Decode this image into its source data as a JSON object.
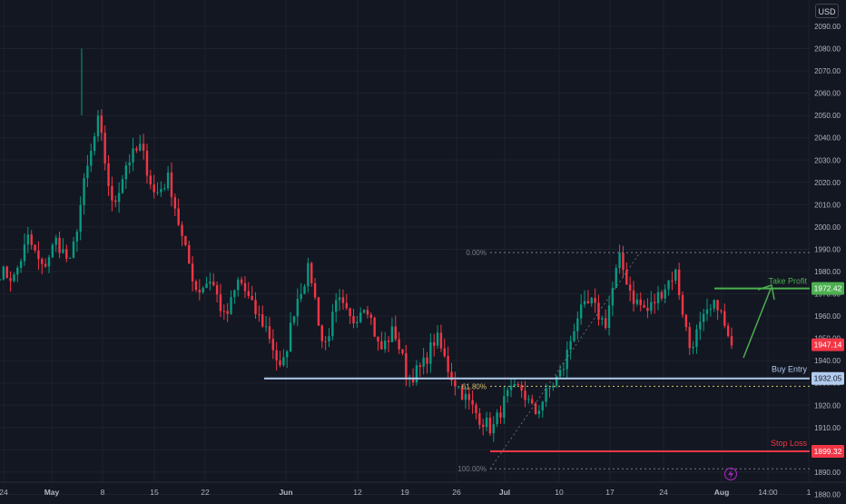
{
  "currency_label": "USD",
  "colors": {
    "background": "#131722",
    "grid": "#1e222d",
    "up": "#089981",
    "down": "#f23645",
    "axis_text": "#b2b5be",
    "support": "#b2ccee",
    "take_profit": "#4caf50",
    "stop_loss": "#f23645",
    "fib": "#787b86",
    "fib_mid": "#d7c36a",
    "price_label": "#f23645",
    "lightning": "#9c27b0"
  },
  "icons": {
    "event": "lightning-icon"
  },
  "chart_data": {
    "type": "candlestick",
    "title": "",
    "ylim": [
      1877,
      2098
    ],
    "grid": true,
    "y_ticks": [
      2090,
      2080,
      2070,
      2060,
      2050,
      2040,
      2030,
      2020,
      2010,
      2000,
      1990,
      1980,
      1970,
      1960,
      1950,
      1940,
      1930,
      1920,
      1910,
      1900,
      1890,
      1880
    ],
    "y_tick_labels": [
      "2090.00",
      "2080.00",
      "2070.00",
      "2060.00",
      "2050.00",
      "2040.00",
      "2030.00",
      "2020.00",
      "2010.00",
      "2000.00",
      "1990.00",
      "1980.00",
      "1970.00",
      "1960.00",
      "1950.00",
      "1940.00",
      "1930.00",
      "1920.00",
      "1910.00",
      "1900.00",
      "1890.00",
      "1880.00"
    ],
    "x_ticks": [
      "24",
      "May",
      "8",
      "15",
      "22",
      "Jun",
      "12",
      "19",
      "26",
      "Jul",
      "10",
      "17",
      "24",
      "Aug",
      "14:00",
      "1"
    ],
    "x_bold": [
      "May",
      "Jun",
      "Jul",
      "Aug"
    ],
    "price_path": [
      1980,
      1977,
      1995,
      1981,
      1994,
      1983,
      2020,
      2048,
      2008,
      2029,
      2036,
      2014,
      2022,
      1993,
      1971,
      1977,
      1958,
      1977,
      1963,
      1954,
      1934,
      1966,
      1982,
      1945,
      1967,
      1957,
      1967,
      1944,
      1954,
      1932,
      1937,
      1951,
      1934,
      1924,
      1915,
      1909,
      1924,
      1928,
      1916,
      1927,
      1936,
      1960,
      1966,
      1956,
      1986,
      1968,
      1962,
      1971,
      1980,
      1946,
      1958,
      1966,
      1944
    ],
    "levels": {
      "take_profit": {
        "label": "Take Profit",
        "value": 1972.42,
        "display": "1972.42"
      },
      "buy_entry": {
        "label": "Buy Entry",
        "value": 1932.05,
        "display": "1932.05"
      },
      "stop_loss": {
        "label": "Stop Loss",
        "value": 1899.32,
        "display": "1899.32"
      },
      "last_price": {
        "value": 1947.14,
        "display": "1947.14"
      }
    },
    "fib": [
      {
        "label": "0.00%",
        "value": 1988.5
      },
      {
        "label": "61.80%",
        "value": 1928.5
      },
      {
        "label": "100.00%",
        "value": 1891.5
      }
    ]
  }
}
